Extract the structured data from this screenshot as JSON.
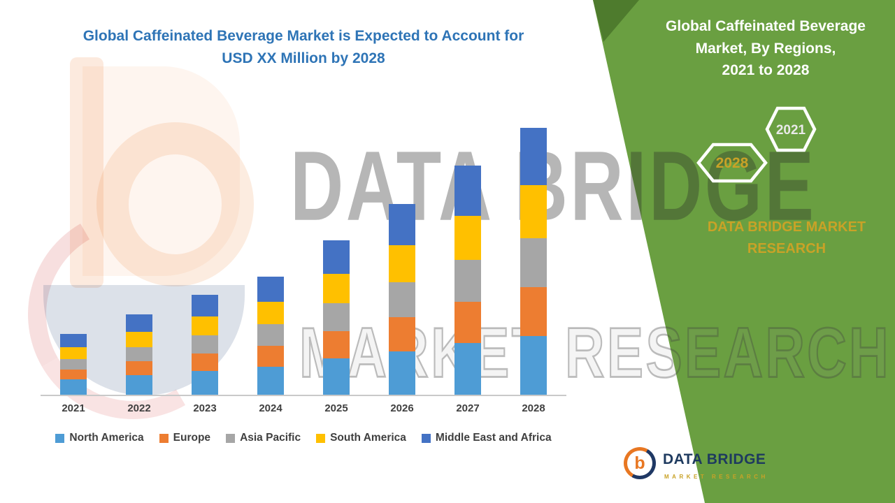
{
  "chart": {
    "title_lines": [
      "Global Caffeinated Beverage Market is Expected to Account for",
      "USD XX Million by 2028"
    ],
    "title_color": "#2E74B6"
  },
  "chart_data": {
    "type": "bar",
    "stacked": true,
    "title": "Global Caffeinated Beverage Market is Expected to Account for USD XX Million by 2028",
    "xlabel": "",
    "ylabel": "",
    "y_axis_labels_shown": false,
    "note": "No numeric y-axis is shown in the figure; values below are relative estimates read from bar heights (px-proportional units).",
    "categories": [
      "2021",
      "2022",
      "2023",
      "2024",
      "2025",
      "2026",
      "2027",
      "2028"
    ],
    "series": [
      {
        "name": "North America",
        "color": "#4E9CD5",
        "values": [
          22,
          28,
          34,
          40,
          52,
          62,
          74,
          84
        ]
      },
      {
        "name": "Europe",
        "color": "#ED7D31",
        "values": [
          14,
          20,
          25,
          30,
          39,
          49,
          59,
          70
        ]
      },
      {
        "name": "Asia Pacific",
        "color": "#A6A6A6",
        "values": [
          15,
          20,
          26,
          31,
          40,
          50,
          60,
          70
        ]
      },
      {
        "name": "South America",
        "color": "#FFC000",
        "values": [
          17,
          22,
          27,
          32,
          42,
          53,
          63,
          76
        ]
      },
      {
        "name": "Middle East and Africa",
        "color": "#4472C4",
        "values": [
          19,
          25,
          31,
          36,
          48,
          59,
          72,
          82
        ]
      }
    ],
    "totals": [
      87,
      115,
      143,
      169,
      221,
      273,
      328,
      382
    ],
    "legend_position": "bottom",
    "grid": false
  },
  "right_panel": {
    "heading_lines": [
      "Global Caffeinated Beverage",
      "Market, By Regions,",
      "2021 to 2028"
    ],
    "hexagons": [
      {
        "label": "2028",
        "text_color": "#C9A227",
        "border_color": "#FFFFFF"
      },
      {
        "label": "2021",
        "text_color": "#E9E9E9",
        "border_color": "#FFFFFF"
      }
    ],
    "brand_lines": [
      "DATA BRIDGE MARKET",
      "RESEARCH"
    ],
    "bg_color": "#6A9F41",
    "fold_color": "#4E7B2D",
    "accent_gold": "#C9A227"
  },
  "watermark": {
    "line1": "DATA BRIDGE",
    "line2": "MARKET RESEARCH"
  },
  "footer_logo": {
    "b": "b",
    "brand": "DATA BRIDGE",
    "sub": "MARKET RESEARCH"
  }
}
